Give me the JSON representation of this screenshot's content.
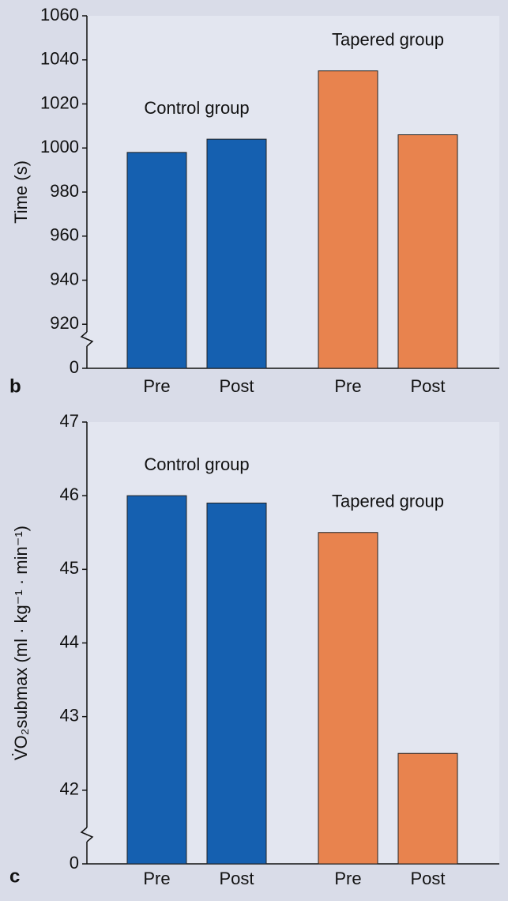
{
  "chart_data": [
    {
      "type": "bar",
      "panel_label": "b",
      "y_label": "Time (s)",
      "categories": [
        "Pre",
        "Post"
      ],
      "series": [
        {
          "name": "Control group",
          "color": "#1560b0",
          "values": [
            998,
            1004
          ]
        },
        {
          "name": "Tapered group",
          "color": "#e8834e",
          "values": [
            1035,
            1006
          ]
        }
      ],
      "ylim": [
        0,
        1060
      ],
      "ybreak": [
        0,
        900
      ],
      "yticks": [
        0,
        920,
        940,
        960,
        980,
        1000,
        1020,
        1040,
        1060
      ]
    },
    {
      "type": "bar",
      "panel_label": "c",
      "y_label": "V̇O₂submax (ml · kg⁻¹ · min⁻¹)",
      "categories": [
        "Pre",
        "Post"
      ],
      "series": [
        {
          "name": "Control group",
          "color": "#1560b0",
          "values": [
            46.0,
            45.9
          ]
        },
        {
          "name": "Tapered group",
          "color": "#e8834e",
          "values": [
            45.5,
            42.5
          ]
        }
      ],
      "ylim": [
        0,
        47
      ],
      "ybreak": [
        0,
        41
      ],
      "yticks": [
        0,
        42,
        43,
        44,
        45,
        46,
        47
      ]
    }
  ]
}
